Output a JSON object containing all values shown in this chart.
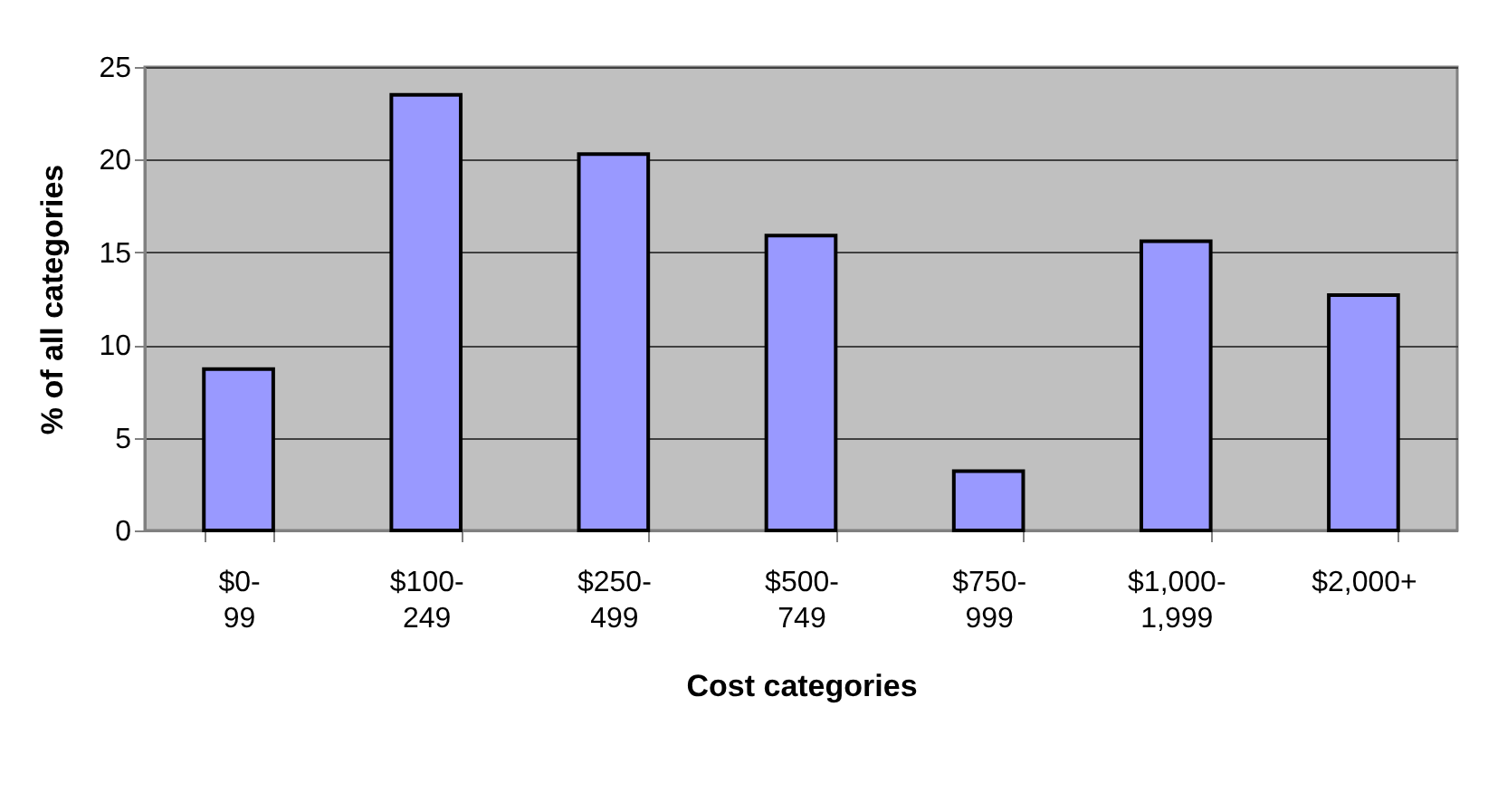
{
  "chart_data": {
    "type": "bar",
    "xlabel": "Cost categories",
    "ylabel": "% of all categories",
    "categories": [
      "$0-99",
      "$100-249",
      "$250-499",
      "$500-749",
      "$750-999",
      "$1,000-1,999",
      "$2,000+"
    ],
    "values": [
      8.7,
      23.5,
      20.3,
      15.9,
      3.2,
      15.6,
      12.7
    ],
    "color": "#9999ff",
    "ylim": [
      0,
      25
    ],
    "yticks": [
      0,
      5,
      10,
      15,
      20,
      25
    ],
    "grid": "y"
  }
}
